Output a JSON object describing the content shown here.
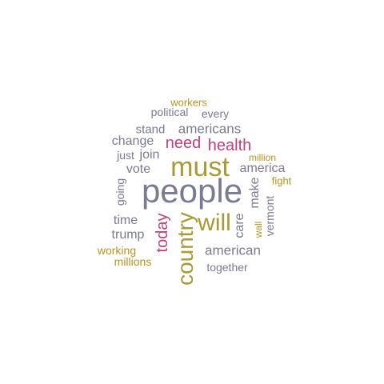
{
  "colors": {
    "grey": "#7a7a92",
    "olive": "#a99a33",
    "magenta": "#c33f7c",
    "gold": "#b8931f"
  },
  "words": [
    {
      "text": "workers",
      "color": "gold"
    },
    {
      "text": "political",
      "color": "grey"
    },
    {
      "text": "every",
      "color": "grey"
    },
    {
      "text": "stand",
      "color": "grey"
    },
    {
      "text": "americans",
      "color": "grey"
    },
    {
      "text": "change",
      "color": "grey"
    },
    {
      "text": "need",
      "color": "magenta"
    },
    {
      "text": "health",
      "color": "magenta"
    },
    {
      "text": "just",
      "color": "grey"
    },
    {
      "text": "join",
      "color": "grey"
    },
    {
      "text": "million",
      "color": "gold"
    },
    {
      "text": "must",
      "color": "olive"
    },
    {
      "text": "america",
      "color": "grey"
    },
    {
      "text": "vote",
      "color": "grey"
    },
    {
      "text": "fight",
      "color": "gold"
    },
    {
      "text": "going",
      "color": "grey"
    },
    {
      "text": "people",
      "color": "grey"
    },
    {
      "text": "make",
      "color": "grey"
    },
    {
      "text": "vermont",
      "color": "grey"
    },
    {
      "text": "time",
      "color": "grey"
    },
    {
      "text": "today",
      "color": "magenta"
    },
    {
      "text": "country",
      "color": "olive"
    },
    {
      "text": "will",
      "color": "olive"
    },
    {
      "text": "care",
      "color": "grey"
    },
    {
      "text": "wall",
      "color": "gold"
    },
    {
      "text": "trump",
      "color": "grey"
    },
    {
      "text": "american",
      "color": "grey"
    },
    {
      "text": "working",
      "color": "gold"
    },
    {
      "text": "millions",
      "color": "gold"
    },
    {
      "text": "together",
      "color": "grey"
    }
  ]
}
